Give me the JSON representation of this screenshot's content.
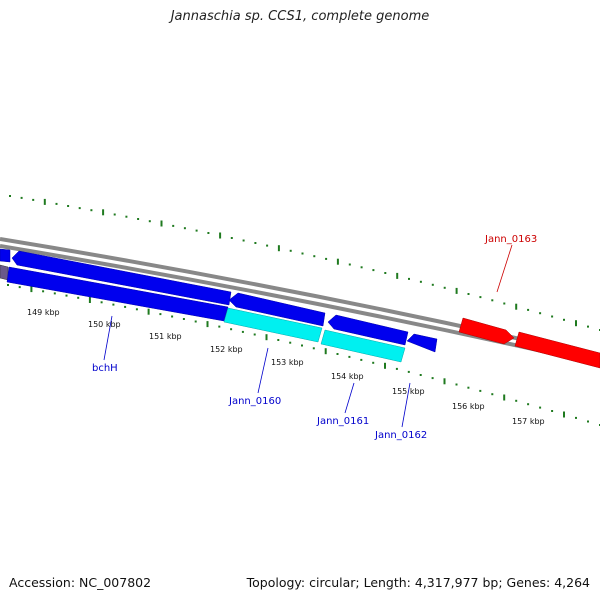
{
  "title": "Jannaschia sp. CCS1, complete genome",
  "footer": {
    "accession": "Accession: NC_007802",
    "topology": "Topology: circular; Length: 4,317,977 bp; Genes: 4,264"
  },
  "colors": {
    "background": "#ffffff",
    "backbone": "#888888",
    "tick": "#1f7a1f",
    "forward_gene": "#ff0000",
    "reverse_gene": "#0000ee",
    "highlight_gene": "#00f0f0",
    "label_blue": "#0000cc",
    "label_red": "#cc0000"
  },
  "tick_labels": [
    "149 kbp",
    "150 kbp",
    "151 kbp",
    "152 kbp",
    "153 kbp",
    "154 kbp",
    "155 kbp",
    "156 kbp",
    "157 kbp"
  ],
  "gene_labels": {
    "bchH": "bchH",
    "jann_0160": "Jann_0160",
    "jann_0161": "Jann_0161",
    "jann_0162": "Jann_0162",
    "jann_0163": "Jann_0163"
  }
}
